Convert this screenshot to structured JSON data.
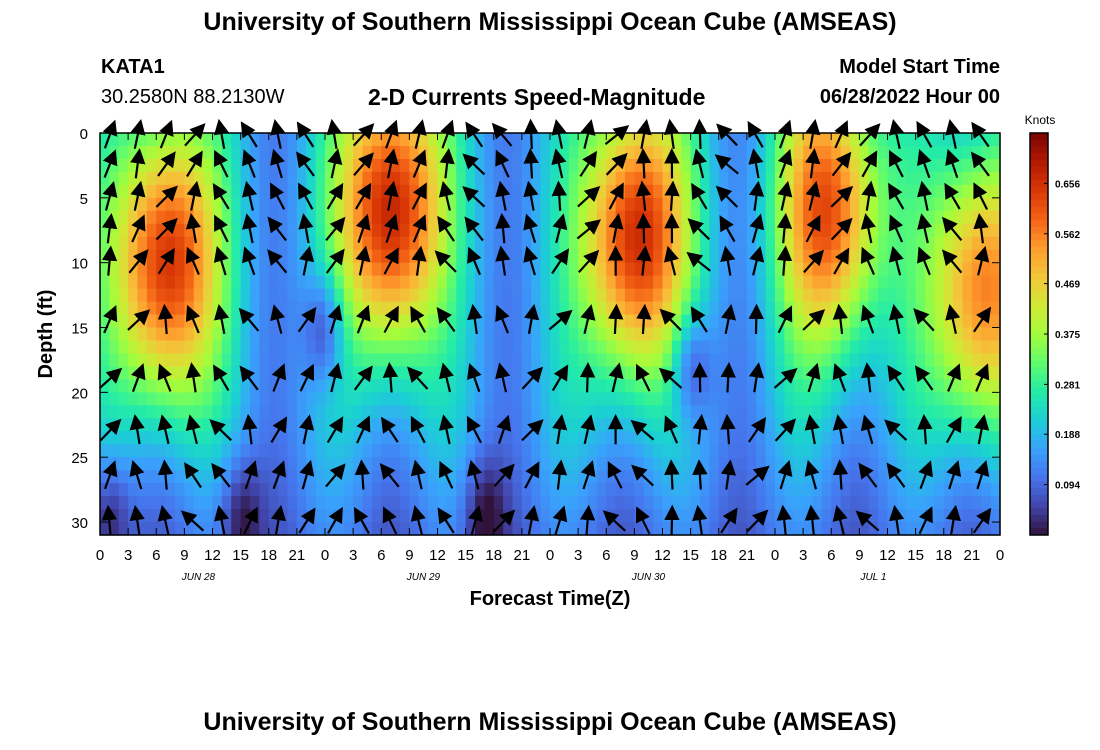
{
  "header": {
    "title": "University of Southern Mississippi Ocean Cube (AMSEAS)",
    "station": "KATA1",
    "coords": "30.2580N  88.2130W",
    "subtitle": "2-D Currents Speed-Magnitude",
    "start_label": "Model Start Time",
    "start_value": "06/28/2022 Hour 00"
  },
  "footer": {
    "title": "University of Southern Mississippi Ocean Cube (AMSEAS)"
  },
  "chart_data": {
    "type": "heatmap",
    "title": "2-D Currents Speed-Magnitude",
    "xlabel": "Forecast Time(Z)",
    "ylabel": "Depth (ft)",
    "x_range_hours": [
      0,
      96
    ],
    "y_range_ft": [
      0,
      31
    ],
    "x_ticks": [
      {
        "hour": 0,
        "label": "0"
      },
      {
        "hour": 3,
        "label": "3"
      },
      {
        "hour": 6,
        "label": "6"
      },
      {
        "hour": 9,
        "label": "9"
      },
      {
        "hour": 12,
        "label": "12"
      },
      {
        "hour": 15,
        "label": "15"
      },
      {
        "hour": 18,
        "label": "18"
      },
      {
        "hour": 21,
        "label": "21"
      },
      {
        "hour": 24,
        "label": "0"
      },
      {
        "hour": 27,
        "label": "3"
      },
      {
        "hour": 30,
        "label": "6"
      },
      {
        "hour": 33,
        "label": "9"
      },
      {
        "hour": 36,
        "label": "12"
      },
      {
        "hour": 39,
        "label": "15"
      },
      {
        "hour": 42,
        "label": "18"
      },
      {
        "hour": 45,
        "label": "21"
      },
      {
        "hour": 48,
        "label": "0"
      },
      {
        "hour": 51,
        "label": "3"
      },
      {
        "hour": 54,
        "label": "6"
      },
      {
        "hour": 57,
        "label": "9"
      },
      {
        "hour": 60,
        "label": "12"
      },
      {
        "hour": 63,
        "label": "15"
      },
      {
        "hour": 66,
        "label": "18"
      },
      {
        "hour": 69,
        "label": "21"
      },
      {
        "hour": 72,
        "label": "0"
      },
      {
        "hour": 75,
        "label": "3"
      },
      {
        "hour": 78,
        "label": "6"
      },
      {
        "hour": 81,
        "label": "9"
      },
      {
        "hour": 84,
        "label": "12"
      },
      {
        "hour": 87,
        "label": "15"
      },
      {
        "hour": 90,
        "label": "18"
      },
      {
        "hour": 93,
        "label": "21"
      },
      {
        "hour": 96,
        "label": "0"
      }
    ],
    "date_labels": [
      {
        "hour": 10.5,
        "label": "JUN 28"
      },
      {
        "hour": 34.5,
        "label": "JUN 29"
      },
      {
        "hour": 58.5,
        "label": "JUN 30"
      },
      {
        "hour": 82.5,
        "label": "JUL 1"
      }
    ],
    "y_ticks": [
      0,
      5,
      10,
      15,
      20,
      25,
      30
    ],
    "colorbar": {
      "unit": "Knots",
      "range": [
        0.0,
        0.75
      ],
      "tick_values": [
        0.656,
        0.562,
        0.469,
        0.375,
        0.281,
        0.188,
        0.094
      ],
      "tick_labels": [
        "0.656",
        "0.562",
        "0.469",
        "0.375",
        "0.281",
        "0.188",
        "0.094"
      ],
      "colors": [
        "#30123b",
        "#4145ab",
        "#4675ed",
        "#39a2fc",
        "#1bcfd4",
        "#24eca6",
        "#61fc6c",
        "#a4fc3b",
        "#d1e834",
        "#f3c63a",
        "#fe9b2d",
        "#f36315",
        "#d93806",
        "#b11901",
        "#7a0402"
      ]
    },
    "speed_peaks": [
      {
        "hour": 7,
        "depth_ft": 10,
        "speed": 0.69
      },
      {
        "hour": 31,
        "depth_ft": 6,
        "speed": 0.72
      },
      {
        "hour": 57,
        "depth_ft": 8,
        "speed": 0.7
      },
      {
        "hour": 78,
        "depth_ft": 6,
        "speed": 0.63
      },
      {
        "hour": 94,
        "depth_ft": 12,
        "speed": 0.6
      }
    ],
    "speed_minima": [
      {
        "hour": 24,
        "depth_ft": 15,
        "speed": 0.08
      },
      {
        "hour": 63,
        "depth_ft": 18,
        "speed": 0.07
      },
      {
        "hour": 1,
        "depth_ft": 30,
        "speed": 0.02
      },
      {
        "hour": 15,
        "depth_ft": 30,
        "speed": 0.03
      },
      {
        "hour": 41,
        "depth_ft": 30,
        "speed": 0.04
      }
    ],
    "vector_times_hours": [
      0,
      3,
      6,
      9,
      12,
      15,
      18,
      21,
      24,
      27,
      30,
      33,
      36,
      39,
      42,
      45,
      48,
      51,
      54,
      57,
      60,
      63,
      66,
      69,
      72,
      75,
      78,
      81,
      84,
      87,
      90,
      93
    ],
    "vector_depths_ft": [
      0,
      2.5,
      5,
      7.5,
      10,
      14.5,
      19,
      23,
      26.5,
      30
    ]
  }
}
